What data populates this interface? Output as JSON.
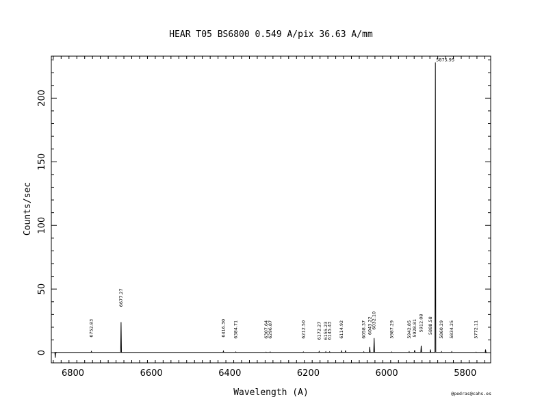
{
  "chart_data": {
    "type": "line",
    "title": "HEAR  T05  BS6800  0.549 A/pix  36.63 A/mm",
    "xlabel": "Wavelength (A)",
    "ylabel": "Counts/sec",
    "credit": "@pedras@cahs.es",
    "xlim": [
      6855,
      5735
    ],
    "ylim": [
      -8,
      233
    ],
    "x_ticks": [
      6800,
      6600,
      6400,
      6200,
      6000,
      5800
    ],
    "y_ticks": [
      0,
      50,
      100,
      150,
      200
    ],
    "grid": false,
    "spectrum": {
      "name": "",
      "baseline": 0.2,
      "start_x": 6845,
      "end_x": 5745,
      "peaks": [
        {
          "x": 6752.83,
          "y": 1.0
        },
        {
          "x": 6677.27,
          "y": 24.0
        },
        {
          "x": 6416.3,
          "y": 1.2
        },
        {
          "x": 6384.71,
          "y": 0.6
        },
        {
          "x": 6307.64,
          "y": 0.5
        },
        {
          "x": 6296.87,
          "y": 0.6
        },
        {
          "x": 6212.5,
          "y": 0.6
        },
        {
          "x": 6172.27,
          "y": 1.0
        },
        {
          "x": 6155.23,
          "y": 0.8
        },
        {
          "x": 6145.43,
          "y": 0.7
        },
        {
          "x": 6114.92,
          "y": 1.3
        },
        {
          "x": 6105.0,
          "y": 1.8
        },
        {
          "x": 6058.37,
          "y": 0.7
        },
        {
          "x": 6043.22,
          "y": 4.5
        },
        {
          "x": 6032.1,
          "y": 11.5
        },
        {
          "x": 5987.29,
          "y": 0.6
        },
        {
          "x": 5942.85,
          "y": 0.8
        },
        {
          "x": 5928.81,
          "y": 2.0
        },
        {
          "x": 5912.08,
          "y": 5.5
        },
        {
          "x": 5888.58,
          "y": 2.5
        },
        {
          "x": 5875.95,
          "y": 228.0
        },
        {
          "x": 5860.29,
          "y": 0.8
        },
        {
          "x": 5834.25,
          "y": 0.8
        },
        {
          "x": 5772.11,
          "y": 0.5
        },
        {
          "x": 5748.0,
          "y": 2.5
        },
        {
          "x": 6845.0,
          "y": -4.0
        }
      ]
    },
    "annotations": [
      {
        "text": "6752.83",
        "x": 6752.83,
        "y": 12
      },
      {
        "text": "6677.27",
        "x": 6677.27,
        "y": 36
      },
      {
        "text": "6416.30",
        "x": 6416.3,
        "y": 12
      },
      {
        "text": "6384.71",
        "x": 6384.71,
        "y": 11
      },
      {
        "text": "6307.64",
        "x": 6307.64,
        "y": 11
      },
      {
        "text": "6296.87",
        "x": 6296.87,
        "y": 11
      },
      {
        "text": "6212.50",
        "x": 6212.5,
        "y": 11
      },
      {
        "text": "6172.27",
        "x": 6172.27,
        "y": 10
      },
      {
        "text": "6155.23",
        "x": 6155.23,
        "y": 10
      },
      {
        "text": "6145.43",
        "x": 6145.43,
        "y": 10
      },
      {
        "text": "6114.92",
        "x": 6114.92,
        "y": 11
      },
      {
        "text": "6058.37",
        "x": 6058.37,
        "y": 11
      },
      {
        "text": "6043.22",
        "x": 6043.22,
        "y": 14
      },
      {
        "text": "6032.10",
        "x": 6032.1,
        "y": 18
      },
      {
        "text": "5987.29",
        "x": 5987.29,
        "y": 11
      },
      {
        "text": "5942.85",
        "x": 5942.85,
        "y": 11
      },
      {
        "text": "5928.81",
        "x": 5928.81,
        "y": 12
      },
      {
        "text": "5912.08",
        "x": 5912.08,
        "y": 16
      },
      {
        "text": "5888.58",
        "x": 5888.58,
        "y": 14
      },
      {
        "text": "5875.95",
        "x": 5875.95,
        "y": 228
      },
      {
        "text": "5860.29",
        "x": 5860.29,
        "y": 11
      },
      {
        "text": "5834.25",
        "x": 5834.25,
        "y": 11
      },
      {
        "text": "5772.11",
        "x": 5772.11,
        "y": 11
      }
    ]
  }
}
